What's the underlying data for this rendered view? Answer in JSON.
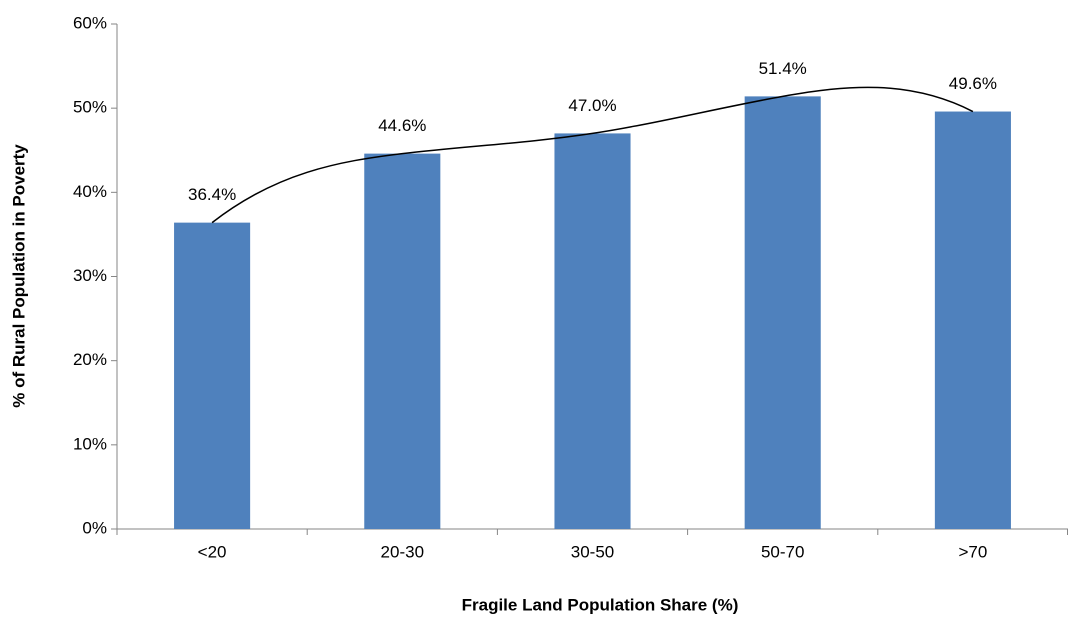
{
  "chart_data": {
    "type": "bar",
    "x_label": "Fragile Land Population Share (%)",
    "y_label": "% of Rural Population in Poverty",
    "categories": [
      "<20",
      "20-30",
      "30-50",
      "50-70",
      ">70"
    ],
    "values": [
      36.4,
      44.6,
      47.0,
      51.4,
      49.6
    ],
    "value_labels": [
      "36.4%",
      "44.6%",
      "47.0%",
      "51.4%",
      "49.6%"
    ],
    "color": "#4f81bd",
    "trendline": true,
    "ylim": [
      0,
      60
    ],
    "yticks": [
      {
        "value": 0,
        "label": "0%"
      },
      {
        "value": 10,
        "label": "10%"
      },
      {
        "value": 20,
        "label": "20%"
      },
      {
        "value": 30,
        "label": "30%"
      },
      {
        "value": 40,
        "label": "40%"
      },
      {
        "value": 50,
        "label": "50%"
      },
      {
        "value": 60,
        "label": "60%"
      }
    ]
  }
}
